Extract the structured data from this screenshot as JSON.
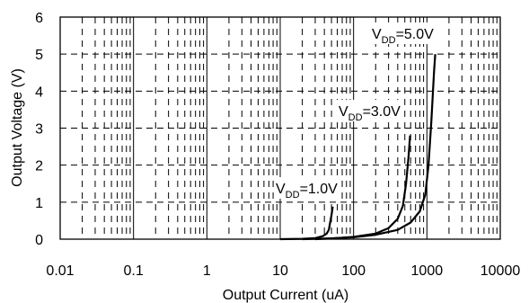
{
  "chart_data": {
    "type": "line",
    "title": "",
    "xlabel": "Output Current (uA)",
    "ylabel": "Output Voltage (V)",
    "x_scale": "log",
    "xlim": [
      0.01,
      10000
    ],
    "ylim": [
      0,
      6
    ],
    "x_ticks": [
      "0.01",
      "0.1",
      "1",
      "10",
      "100",
      "1000",
      "10000"
    ],
    "y_ticks": [
      "0",
      "1",
      "2",
      "3",
      "4",
      "5",
      "6"
    ],
    "grid": true,
    "legend": "none",
    "series": [
      {
        "label_main": "V",
        "label_sub": "DD",
        "label_value": "=1.0V",
        "x": [
          10,
          20,
          30,
          38,
          43,
          46,
          48,
          50,
          52
        ],
        "y": [
          0,
          0.01,
          0.03,
          0.08,
          0.15,
          0.25,
          0.45,
          0.65,
          0.88
        ],
        "color": "#000000"
      },
      {
        "label_main": "V",
        "label_sub": "DD",
        "label_value": "=3.0V",
        "x": [
          20,
          50,
          100,
          200,
          300,
          400,
          470,
          520,
          560,
          590
        ],
        "y": [
          0,
          0.02,
          0.06,
          0.15,
          0.3,
          0.55,
          0.9,
          1.5,
          2.2,
          2.8
        ],
        "color": "#000000"
      },
      {
        "label_main": "V",
        "label_sub": "DD",
        "label_value": "=5.0V",
        "x": [
          30,
          100,
          200,
          400,
          600,
          800,
          950,
          1050,
          1150,
          1250,
          1300
        ],
        "y": [
          0,
          0.05,
          0.12,
          0.25,
          0.45,
          0.75,
          1.2,
          2.0,
          3.2,
          4.5,
          5.0
        ],
        "color": "#000000"
      }
    ]
  }
}
